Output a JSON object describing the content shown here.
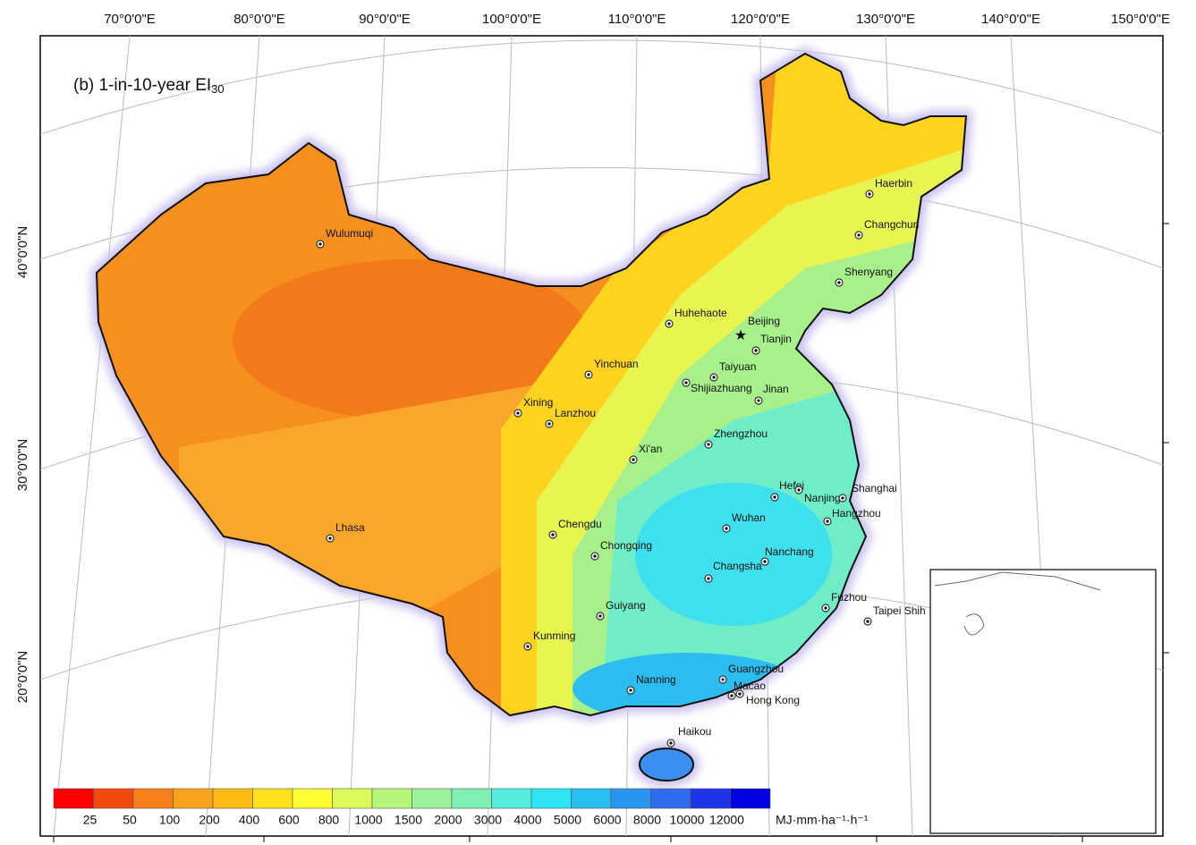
{
  "map": {
    "title": "(b) 1-in-10-year EI",
    "title_sub": "30",
    "longitude_labels": [
      "70°0'0\"E",
      "80°0'0\"E",
      "90°0'0\"E",
      "100°0'0\"E",
      "110°0'0\"E",
      "120°0'0\"E",
      "130°0'0\"E",
      "140°0'0\"E",
      "150°0'0\"E"
    ],
    "latitude_labels": [
      "40°0'0\"N",
      "30°0'0\"N",
      "20°0'0\"N"
    ],
    "cities": [
      "Haerbin",
      "Changchun",
      "Shenyang",
      "Huhehaote",
      "Beijing",
      "Tianjin",
      "Yinchuan",
      "Taiyuan",
      "Shijiazhuang",
      "Jinan",
      "Xining",
      "Lanzhou",
      "Wulumuqi",
      "Zhengzhou",
      "Xi'an",
      "Hefei",
      "Nanjing",
      "Shanghai",
      "Hangzhou",
      "Wuhan",
      "Chengdu",
      "Lhasa",
      "Chongqing",
      "Nanchang",
      "Changsha",
      "Fuzhou",
      "Taipei Shih",
      "Guiyang",
      "Kunming",
      "Guangzhou",
      "Nanning",
      "Macao",
      "Hong Kong",
      "Haikou"
    ],
    "legend": {
      "colors": [
        "#ff0000",
        "#f24a0c",
        "#f77f1a",
        "#f9a21d",
        "#fdbb12",
        "#ffe11a",
        "#ffff33",
        "#dcfb5a",
        "#b5f57a",
        "#9cf29a",
        "#7ff0b4",
        "#55eedc",
        "#2ee4f5",
        "#27bff2",
        "#2a95ee",
        "#2d6ef0",
        "#1d35e6",
        "#0000e0"
      ],
      "breaks": [
        25,
        50,
        100,
        200,
        400,
        600,
        800,
        1000,
        1500,
        2000,
        3000,
        4000,
        5000,
        6000,
        8000,
        10000,
        12000
      ],
      "unit": "MJ·mm·ha⁻¹·h⁻¹"
    }
  }
}
